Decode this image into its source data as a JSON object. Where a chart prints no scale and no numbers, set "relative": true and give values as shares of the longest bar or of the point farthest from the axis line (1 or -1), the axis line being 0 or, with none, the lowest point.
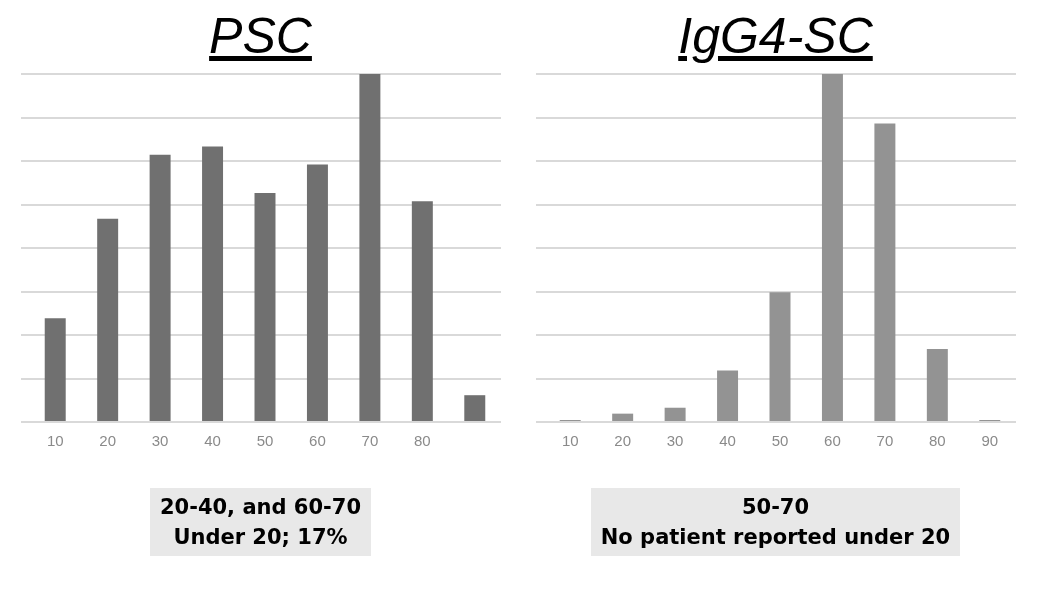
{
  "chart_data": [
    {
      "type": "bar",
      "title": "PSC",
      "relative": true,
      "categories": [
        "10",
        "20",
        "30",
        "40",
        "50",
        "60",
        "70",
        "80",
        null
      ],
      "values": [
        0.298,
        0.584,
        0.768,
        0.792,
        0.658,
        0.74,
        1,
        0.634,
        0.077
      ],
      "color": "#707070",
      "grid": "y",
      "legend": false,
      "annotations": [
        "20-40, and 60-70",
        "Under 20; 17%"
      ]
    },
    {
      "type": "bar",
      "title": "IgG4-SC",
      "relative": true,
      "categories": [
        "10",
        "20",
        "30",
        "40",
        "50",
        "60",
        "70",
        "80",
        "90"
      ],
      "values": [
        0,
        0.024,
        0.041,
        0.148,
        0.373,
        1,
        0.858,
        0.21,
        0
      ],
      "color": "#939393",
      "grid": "y",
      "legend": false,
      "annotations": [
        "50-70",
        "No patient reported under 20"
      ]
    }
  ]
}
